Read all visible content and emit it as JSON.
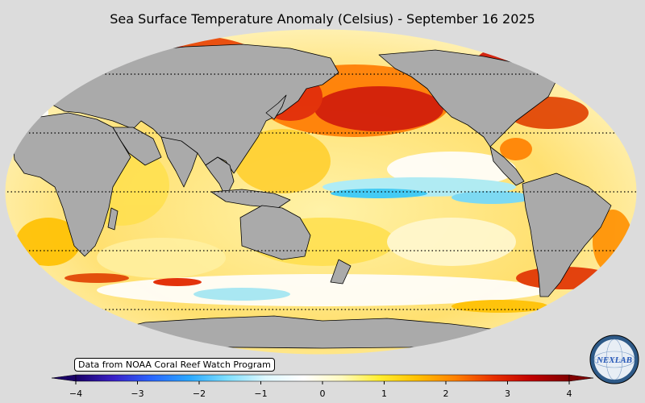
{
  "title": "Sea Surface Temperature Anomaly (Celsius) - September 16 2025",
  "credit": "Data from NOAA Coral Reef Watch Program",
  "logo_text": "NEXLAB",
  "colorbar": {
    "ticks": [
      "−4",
      "−3",
      "−2",
      "−1",
      "0",
      "1",
      "2",
      "3",
      "4"
    ],
    "range": [
      -4,
      4
    ],
    "colors": [
      "#1a0066",
      "#3a20c8",
      "#2a66ff",
      "#2aa8ff",
      "#7fe0ff",
      "#dff8ff",
      "#ffffff",
      "#fffac0",
      "#ffee30",
      "#ffc000",
      "#ff8000",
      "#e83000",
      "#c00000",
      "#800000"
    ]
  },
  "colors": {
    "background": "#dcdcdc",
    "land": "#aaaaaa",
    "ocean_neutral": "#fff8d8"
  }
}
